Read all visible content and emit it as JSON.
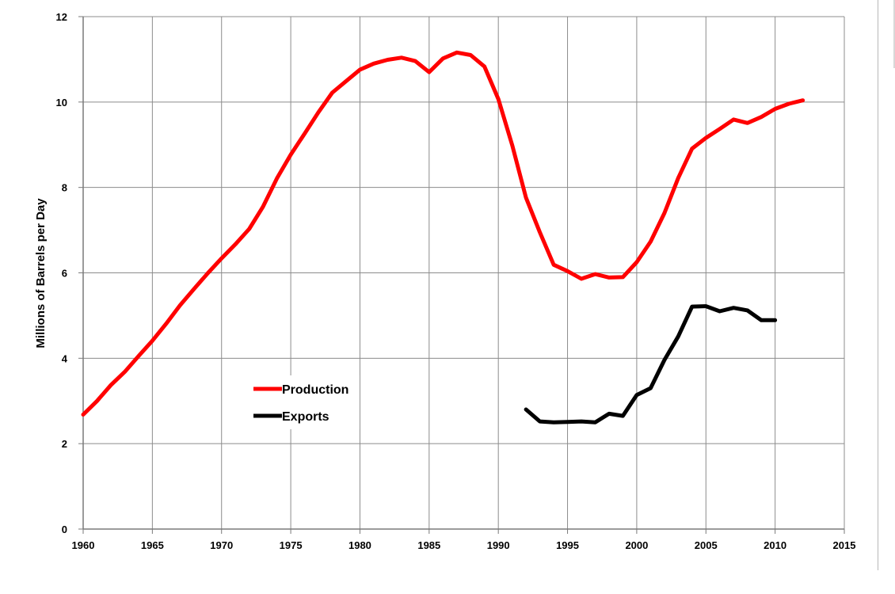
{
  "chart_data": {
    "type": "line",
    "title": "",
    "xlabel": "",
    "ylabel": "Millions of Barrels per Day",
    "xlim": [
      1960,
      2015
    ],
    "ylim": [
      0,
      12
    ],
    "xticks": [
      1960,
      1965,
      1970,
      1975,
      1980,
      1985,
      1990,
      1995,
      2000,
      2005,
      2010,
      2015
    ],
    "yticks": [
      0,
      2,
      4,
      6,
      8,
      10,
      12
    ],
    "grid": true,
    "legend_position": "center-left",
    "series": [
      {
        "name": "Production",
        "color": "#ff0000",
        "x": [
          1960,
          1961,
          1962,
          1963,
          1964,
          1965,
          1966,
          1967,
          1968,
          1969,
          1970,
          1971,
          1972,
          1973,
          1974,
          1975,
          1976,
          1977,
          1978,
          1979,
          1980,
          1981,
          1982,
          1983,
          1984,
          1985,
          1986,
          1987,
          1988,
          1989,
          1990,
          1991,
          1992,
          1993,
          1994,
          1995,
          1996,
          1997,
          1998,
          1999,
          2000,
          2001,
          2002,
          2003,
          2004,
          2005,
          2006,
          2007,
          2008,
          2009,
          2010,
          2011,
          2012
        ],
        "values": [
          2.68,
          3.0,
          3.37,
          3.68,
          4.05,
          4.41,
          4.81,
          5.24,
          5.62,
          5.99,
          6.34,
          6.67,
          7.03,
          7.55,
          8.21,
          8.77,
          9.26,
          9.76,
          10.22,
          10.49,
          10.76,
          10.9,
          10.99,
          11.04,
          10.96,
          10.7,
          11.02,
          11.16,
          11.1,
          10.83,
          10.07,
          8.99,
          7.76,
          6.95,
          6.19,
          6.04,
          5.86,
          5.97,
          5.89,
          5.9,
          6.25,
          6.73,
          7.4,
          8.22,
          8.91,
          9.16,
          9.37,
          9.59,
          9.51,
          9.65,
          9.84,
          9.96,
          10.04
        ]
      },
      {
        "name": "Exports",
        "color": "#000000",
        "x": [
          1992,
          1993,
          1994,
          1995,
          1996,
          1997,
          1998,
          1999,
          2000,
          2001,
          2002,
          2003,
          2004,
          2005,
          2006,
          2007,
          2008,
          2009,
          2010
        ],
        "values": [
          2.8,
          2.52,
          2.5,
          2.51,
          2.52,
          2.5,
          2.7,
          2.65,
          3.14,
          3.3,
          3.96,
          4.51,
          5.21,
          5.22,
          5.1,
          5.18,
          5.12,
          4.89,
          4.89
        ]
      }
    ]
  }
}
